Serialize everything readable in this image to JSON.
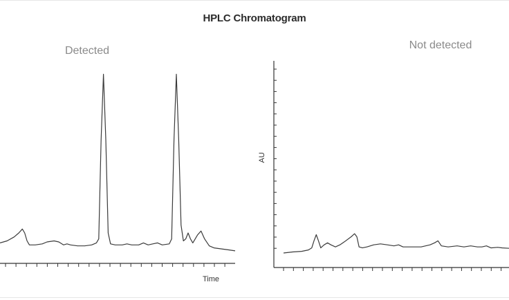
{
  "chart_data": {
    "type": "line",
    "title": "HPLC Chromatogram",
    "panels": [
      {
        "id": "detected",
        "title": "Detected",
        "xlabel": "Time",
        "ylabel": "",
        "xlim": [
          0,
          100
        ],
        "ylim": [
          0,
          100
        ],
        "x_ticks": 22,
        "y_ticks": 0,
        "series": [
          {
            "points": [
              [
                0,
                3
              ],
              [
                3,
                4
              ],
              [
                6,
                6
              ],
              [
                8,
                8
              ],
              [
                9.5,
                10
              ],
              [
                10.5,
                8
              ],
              [
                11.5,
                4
              ],
              [
                12.5,
                2
              ],
              [
                15,
                2
              ],
              [
                18,
                2.5
              ],
              [
                20,
                3.5
              ],
              [
                23,
                4
              ],
              [
                25,
                3.5
              ],
              [
                27,
                2
              ],
              [
                28.5,
                2.5
              ],
              [
                30,
                2
              ],
              [
                33,
                1.5
              ],
              [
                36,
                1.5
              ],
              [
                39,
                2
              ],
              [
                41,
                3
              ],
              [
                42,
                5
              ],
              [
                43,
                55
              ],
              [
                44,
                88
              ],
              [
                45,
                55
              ],
              [
                46,
                8
              ],
              [
                47,
                2.5
              ],
              [
                49,
                2
              ],
              [
                52,
                2
              ],
              [
                54,
                2.5
              ],
              [
                56,
                2
              ],
              [
                59,
                2
              ],
              [
                61,
                3
              ],
              [
                63,
                2
              ],
              [
                65,
                2.5
              ],
              [
                67,
                3
              ],
              [
                69,
                2
              ],
              [
                72,
                2.5
              ],
              [
                73,
                5
              ],
              [
                74,
                55
              ],
              [
                75,
                88
              ],
              [
                76,
                55
              ],
              [
                77,
                12
              ],
              [
                78,
                4
              ],
              [
                79,
                5
              ],
              [
                80,
                8
              ],
              [
                81,
                5
              ],
              [
                82,
                3
              ],
              [
                84,
                7
              ],
              [
                85.5,
                9
              ],
              [
                87,
                5
              ],
              [
                89,
                1.5
              ],
              [
                91,
                0.5
              ],
              [
                94,
                0
              ],
              [
                97,
                -0.5
              ],
              [
                100,
                -1
              ]
            ]
          }
        ]
      },
      {
        "id": "not_detected",
        "title": "Not detected",
        "xlabel": "",
        "ylabel": "AU",
        "xlim": [
          0,
          100
        ],
        "ylim": [
          0,
          100
        ],
        "x_ticks": 23,
        "y_ticks": 17,
        "series": [
          {
            "points": [
              [
                0,
                0
              ],
              [
                4,
                0.5
              ],
              [
                8,
                0.8
              ],
              [
                11,
                1.5
              ],
              [
                12.5,
                2.5
              ],
              [
                13.5,
                6
              ],
              [
                14.5,
                9
              ],
              [
                15.5,
                6
              ],
              [
                16.5,
                2.5
              ],
              [
                18,
                4
              ],
              [
                19.5,
                5
              ],
              [
                21,
                4
              ],
              [
                23,
                3
              ],
              [
                25,
                4
              ],
              [
                27,
                5.5
              ],
              [
                30,
                8
              ],
              [
                31.5,
                9.5
              ],
              [
                32.5,
                8
              ],
              [
                33.5,
                3
              ],
              [
                35,
                2.5
              ],
              [
                37,
                3
              ],
              [
                40,
                4
              ],
              [
                43,
                4.5
              ],
              [
                46,
                4
              ],
              [
                49,
                3.5
              ],
              [
                51,
                4
              ],
              [
                53,
                3
              ],
              [
                57,
                3
              ],
              [
                61,
                3
              ],
              [
                65,
                4
              ],
              [
                67,
                5
              ],
              [
                68.5,
                6
              ],
              [
                70,
                3.5
              ],
              [
                73,
                3
              ],
              [
                77,
                3.5
              ],
              [
                80,
                3
              ],
              [
                83,
                3.5
              ],
              [
                86,
                3
              ],
              [
                88,
                3
              ],
              [
                90,
                3.5
              ],
              [
                92,
                2.5
              ],
              [
                95,
                2.8
              ],
              [
                97,
                2.5
              ],
              [
                100,
                2.3
              ]
            ]
          }
        ]
      }
    ]
  }
}
